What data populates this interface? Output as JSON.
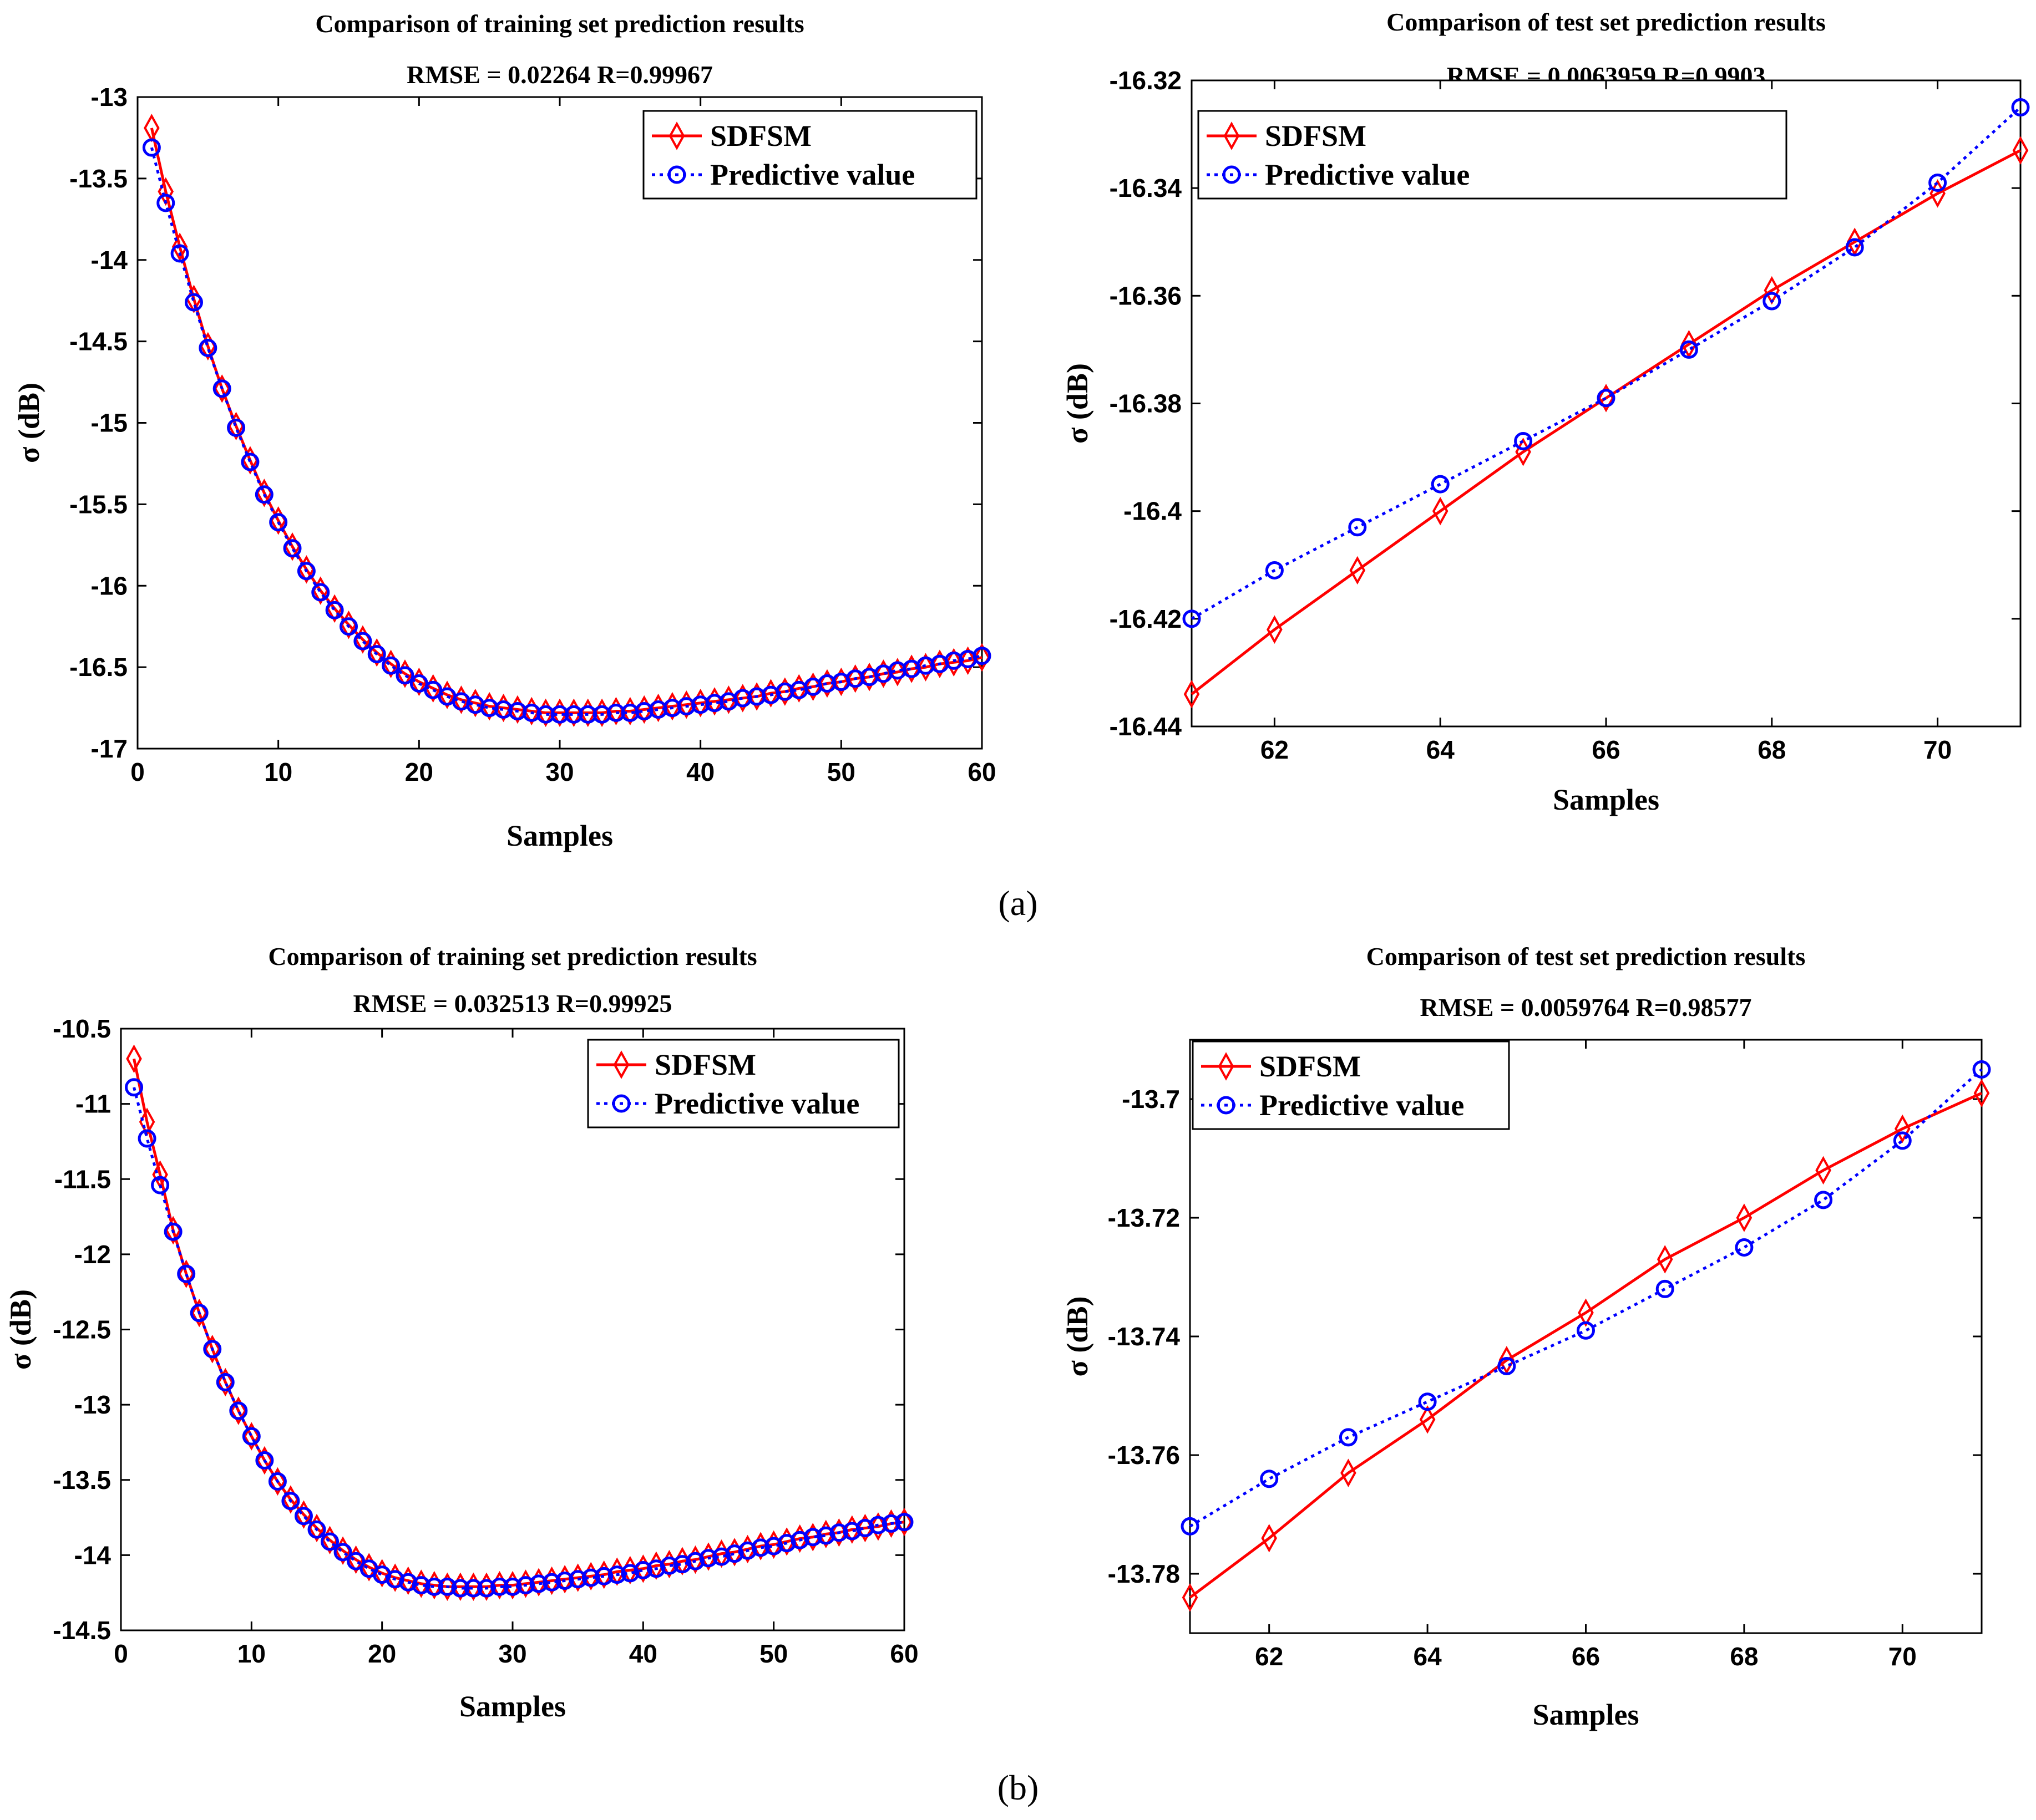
{
  "legend": {
    "series1": "SDFSM",
    "series2": "Predictive value"
  },
  "colors": {
    "series1": "#ff0000",
    "series2": "#0000ff"
  },
  "captions": [
    "(a)",
    "(b)"
  ],
  "chart_data": [
    {
      "id": "a-train",
      "type": "line",
      "title": "Comparison of training set prediction results",
      "subtitle": "RMSE = 0.02264  R=0.99967",
      "xlabel": "Samples",
      "ylabel": "σ (dB)",
      "xlim": [
        0,
        60
      ],
      "ylim": [
        -17,
        -13
      ],
      "xticks": [
        0,
        10,
        20,
        30,
        40,
        50,
        60
      ],
      "yticks": [
        -13,
        -13.5,
        -14,
        -14.5,
        -15,
        -15.5,
        -16,
        -16.5,
        -17
      ],
      "x": [
        1,
        2,
        3,
        4,
        5,
        6,
        7,
        8,
        9,
        10,
        11,
        12,
        13,
        14,
        15,
        16,
        17,
        18,
        19,
        20,
        21,
        22,
        23,
        24,
        25,
        26,
        27,
        28,
        29,
        30,
        31,
        32,
        33,
        34,
        35,
        36,
        37,
        38,
        39,
        40,
        41,
        42,
        43,
        44,
        45,
        46,
        47,
        48,
        49,
        50,
        51,
        52,
        53,
        54,
        55,
        56,
        57,
        58,
        59,
        60
      ],
      "series": [
        {
          "name": "SDFSM",
          "values": [
            -13.19,
            -13.58,
            -13.92,
            -14.24,
            -14.53,
            -14.79,
            -15.02,
            -15.23,
            -15.43,
            -15.6,
            -15.76,
            -15.9,
            -16.03,
            -16.14,
            -16.24,
            -16.33,
            -16.41,
            -16.48,
            -16.54,
            -16.59,
            -16.63,
            -16.67,
            -16.7,
            -16.72,
            -16.74,
            -16.75,
            -16.76,
            -16.77,
            -16.78,
            -16.78,
            -16.78,
            -16.78,
            -16.78,
            -16.77,
            -16.77,
            -16.76,
            -16.75,
            -16.74,
            -16.73,
            -16.72,
            -16.71,
            -16.7,
            -16.69,
            -16.68,
            -16.66,
            -16.65,
            -16.63,
            -16.62,
            -16.6,
            -16.59,
            -16.57,
            -16.56,
            -16.54,
            -16.53,
            -16.51,
            -16.5,
            -16.48,
            -16.47,
            -16.46,
            -16.44
          ]
        },
        {
          "name": "Predictive value",
          "values": [
            -13.31,
            -13.65,
            -13.96,
            -14.26,
            -14.54,
            -14.79,
            -15.03,
            -15.24,
            -15.44,
            -15.61,
            -15.77,
            -15.91,
            -16.04,
            -16.15,
            -16.25,
            -16.34,
            -16.42,
            -16.49,
            -16.55,
            -16.6,
            -16.64,
            -16.68,
            -16.71,
            -16.73,
            -16.75,
            -16.76,
            -16.77,
            -16.78,
            -16.79,
            -16.79,
            -16.79,
            -16.79,
            -16.79,
            -16.78,
            -16.78,
            -16.77,
            -16.76,
            -16.75,
            -16.74,
            -16.73,
            -16.72,
            -16.71,
            -16.69,
            -16.68,
            -16.67,
            -16.65,
            -16.64,
            -16.62,
            -16.6,
            -16.59,
            -16.57,
            -16.56,
            -16.54,
            -16.52,
            -16.51,
            -16.49,
            -16.48,
            -16.46,
            -16.45,
            -16.43
          ]
        }
      ]
    },
    {
      "id": "a-test",
      "type": "line",
      "title": "Comparison of test set prediction results",
      "subtitle": "RMSE = 0.0063959  R=0.9903",
      "xlabel": "Samples",
      "ylabel": "σ (dB)",
      "xlim": [
        61,
        71
      ],
      "ylim": [
        -16.44,
        -16.32
      ],
      "xticks": [
        62,
        64,
        66,
        68,
        70
      ],
      "yticks": [
        -16.32,
        -16.34,
        -16.36,
        -16.38,
        -16.4,
        -16.42,
        -16.44
      ],
      "x": [
        61,
        62,
        63,
        64,
        65,
        66,
        67,
        68,
        69,
        70,
        71
      ],
      "series": [
        {
          "name": "SDFSM",
          "values": [
            -16.434,
            -16.422,
            -16.411,
            -16.4,
            -16.389,
            -16.379,
            -16.369,
            -16.359,
            -16.35,
            -16.341,
            -16.333
          ]
        },
        {
          "name": "Predictive value",
          "values": [
            -16.42,
            -16.411,
            -16.403,
            -16.395,
            -16.387,
            -16.379,
            -16.37,
            -16.361,
            -16.351,
            -16.339,
            -16.325
          ]
        }
      ]
    },
    {
      "id": "b-train",
      "type": "line",
      "title": "Comparison of training set prediction results",
      "subtitle": "RMSE = 0.032513  R=0.99925",
      "xlabel": "Samples",
      "ylabel": "σ (dB)",
      "xlim": [
        0,
        60
      ],
      "ylim": [
        -14.5,
        -10.5
      ],
      "xticks": [
        0,
        10,
        20,
        30,
        40,
        50,
        60
      ],
      "yticks": [
        -10.5,
        -11,
        -11.5,
        -12,
        -12.5,
        -13,
        -13.5,
        -14,
        -14.5
      ],
      "x": [
        1,
        2,
        3,
        4,
        5,
        6,
        7,
        8,
        9,
        10,
        11,
        12,
        13,
        14,
        15,
        16,
        17,
        18,
        19,
        20,
        21,
        22,
        23,
        24,
        25,
        26,
        27,
        28,
        29,
        30,
        31,
        32,
        33,
        34,
        35,
        36,
        37,
        38,
        39,
        40,
        41,
        42,
        43,
        44,
        45,
        46,
        47,
        48,
        49,
        50,
        51,
        52,
        53,
        54,
        55,
        56,
        57,
        58,
        59,
        60
      ],
      "series": [
        {
          "name": "SDFSM",
          "values": [
            -10.7,
            -11.12,
            -11.47,
            -11.84,
            -12.13,
            -12.39,
            -12.63,
            -12.85,
            -13.04,
            -13.21,
            -13.37,
            -13.51,
            -13.63,
            -13.73,
            -13.82,
            -13.9,
            -13.97,
            -14.03,
            -14.08,
            -14.12,
            -14.15,
            -14.17,
            -14.19,
            -14.2,
            -14.21,
            -14.21,
            -14.21,
            -14.21,
            -14.2,
            -14.2,
            -14.19,
            -14.18,
            -14.17,
            -14.16,
            -14.15,
            -14.14,
            -14.13,
            -14.11,
            -14.1,
            -14.09,
            -14.07,
            -14.06,
            -14.04,
            -14.03,
            -14.01,
            -13.99,
            -13.98,
            -13.96,
            -13.94,
            -13.93,
            -13.91,
            -13.89,
            -13.88,
            -13.86,
            -13.85,
            -13.83,
            -13.82,
            -13.81,
            -13.79,
            -13.78
          ]
        },
        {
          "name": "Predictive value",
          "values": [
            -10.89,
            -11.23,
            -11.54,
            -11.85,
            -12.13,
            -12.39,
            -12.63,
            -12.85,
            -13.04,
            -13.21,
            -13.37,
            -13.51,
            -13.64,
            -13.74,
            -13.83,
            -13.91,
            -13.98,
            -14.04,
            -14.09,
            -14.13,
            -14.16,
            -14.18,
            -14.2,
            -14.21,
            -14.21,
            -14.22,
            -14.22,
            -14.22,
            -14.21,
            -14.21,
            -14.2,
            -14.19,
            -14.18,
            -14.17,
            -14.16,
            -14.15,
            -14.14,
            -14.13,
            -14.12,
            -14.1,
            -14.09,
            -14.07,
            -14.06,
            -14.04,
            -14.02,
            -14.01,
            -13.99,
            -13.97,
            -13.95,
            -13.94,
            -13.92,
            -13.9,
            -13.88,
            -13.87,
            -13.85,
            -13.84,
            -13.82,
            -13.8,
            -13.79,
            -13.78
          ]
        }
      ]
    },
    {
      "id": "b-test",
      "type": "line",
      "title": "Comparison of test set prediction results",
      "subtitle": "RMSE = 0.0059764  R=0.98577",
      "xlabel": "Samples",
      "ylabel": "σ (dB)",
      "xlim": [
        61,
        71
      ],
      "ylim": [
        -13.79,
        -13.69
      ],
      "xticks": [
        62,
        64,
        66,
        68,
        70
      ],
      "yticks": [
        -13.7,
        -13.72,
        -13.74,
        -13.76,
        -13.78
      ],
      "x": [
        61,
        62,
        63,
        64,
        65,
        66,
        67,
        68,
        69,
        70,
        71
      ],
      "series": [
        {
          "name": "SDFSM",
          "values": [
            -13.784,
            -13.774,
            -13.763,
            -13.754,
            -13.744,
            -13.736,
            -13.727,
            -13.72,
            -13.712,
            -13.705,
            -13.699
          ]
        },
        {
          "name": "Predictive value",
          "values": [
            -13.772,
            -13.764,
            -13.757,
            -13.751,
            -13.745,
            -13.739,
            -13.732,
            -13.725,
            -13.717,
            -13.707,
            -13.695
          ]
        }
      ]
    }
  ]
}
